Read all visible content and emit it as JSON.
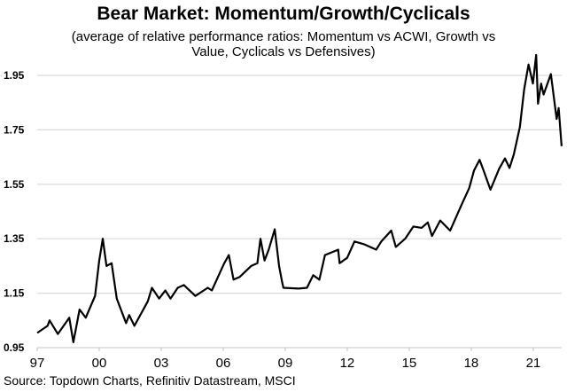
{
  "chart_data": {
    "type": "line",
    "title": "Bear Market: Momentum/Growth/Cyclicals",
    "subtitle_lines": [
      "(average of relative performance ratios: Momentum vs ACWI, Growth vs",
      "Value, Cyclicals vs Defensives)"
    ],
    "source": "Source: Topdown Charts, Refinitiv Datastream, MSCI",
    "xlabel": "",
    "ylabel": "",
    "xlim": [
      1997,
      2022.4
    ],
    "ylim": [
      0.95,
      2.05
    ],
    "grid": "horizontal",
    "legend": "none",
    "line_color": "#000000",
    "grid_color": "#d9d9d9",
    "x_ticks": [
      {
        "value": 1997,
        "label": "97"
      },
      {
        "value": 2000,
        "label": "00"
      },
      {
        "value": 2003,
        "label": "03"
      },
      {
        "value": 2006,
        "label": "06"
      },
      {
        "value": 2009,
        "label": "09"
      },
      {
        "value": 2012,
        "label": "12"
      },
      {
        "value": 2015,
        "label": "15"
      },
      {
        "value": 2018,
        "label": "18"
      },
      {
        "value": 2021,
        "label": "21"
      }
    ],
    "y_ticks": [
      {
        "value": 0.95,
        "label": "0.95"
      },
      {
        "value": 1.15,
        "label": "1.15"
      },
      {
        "value": 1.35,
        "label": "1.35"
      },
      {
        "value": 1.55,
        "label": "1.55"
      },
      {
        "value": 1.75,
        "label": "1.75"
      },
      {
        "value": 1.95,
        "label": "1.95"
      }
    ],
    "series": [
      {
        "x": [
          1997.0,
          1997.5,
          1997.6,
          1998.0,
          1998.55,
          1998.75,
          1999.05,
          1999.35,
          1999.8,
          2000.0,
          2000.17,
          2000.35,
          2000.6,
          2000.85,
          2001.3,
          2001.45,
          2001.7,
          2002.35,
          2002.55,
          2002.9,
          2003.2,
          2003.45,
          2003.8,
          2004.1,
          2004.65,
          2005.25,
          2005.45,
          2006.05,
          2006.27,
          2006.5,
          2006.8,
          2007.35,
          2007.65,
          2007.8,
          2008.0,
          2008.2,
          2008.49,
          2008.7,
          2008.85,
          2008.91,
          2009.63,
          2010.05,
          2010.35,
          2010.65,
          2010.92,
          2011.56,
          2011.63,
          2012.0,
          2012.35,
          2012.8,
          2013.4,
          2013.65,
          2014.13,
          2014.35,
          2014.8,
          2015.2,
          2015.6,
          2015.9,
          2016.1,
          2016.5,
          2016.98,
          2017.5,
          2017.9,
          2018.13,
          2018.4,
          2018.6,
          2018.93,
          2019.35,
          2019.63,
          2019.85,
          2020.06,
          2020.35,
          2020.56,
          2020.77,
          2020.98,
          2021.14,
          2021.23,
          2021.38,
          2021.5,
          2021.85,
          2022.13,
          2022.23,
          2022.37
        ],
        "y": [
          1.004,
          1.03,
          1.05,
          1.0,
          1.06,
          0.97,
          1.09,
          1.06,
          1.14,
          1.27,
          1.35,
          1.25,
          1.26,
          1.13,
          1.04,
          1.07,
          1.03,
          1.12,
          1.17,
          1.13,
          1.16,
          1.13,
          1.17,
          1.18,
          1.14,
          1.17,
          1.16,
          1.26,
          1.29,
          1.2,
          1.21,
          1.25,
          1.26,
          1.35,
          1.27,
          1.31,
          1.385,
          1.25,
          1.19,
          1.17,
          1.167,
          1.17,
          1.216,
          1.2,
          1.29,
          1.31,
          1.26,
          1.28,
          1.34,
          1.33,
          1.31,
          1.34,
          1.38,
          1.32,
          1.35,
          1.395,
          1.39,
          1.41,
          1.36,
          1.417,
          1.38,
          1.47,
          1.536,
          1.6,
          1.64,
          1.6,
          1.53,
          1.607,
          1.645,
          1.61,
          1.66,
          1.76,
          1.9,
          1.99,
          1.92,
          2.025,
          1.846,
          1.92,
          1.88,
          1.955,
          1.79,
          1.83,
          1.69
        ]
      }
    ]
  }
}
